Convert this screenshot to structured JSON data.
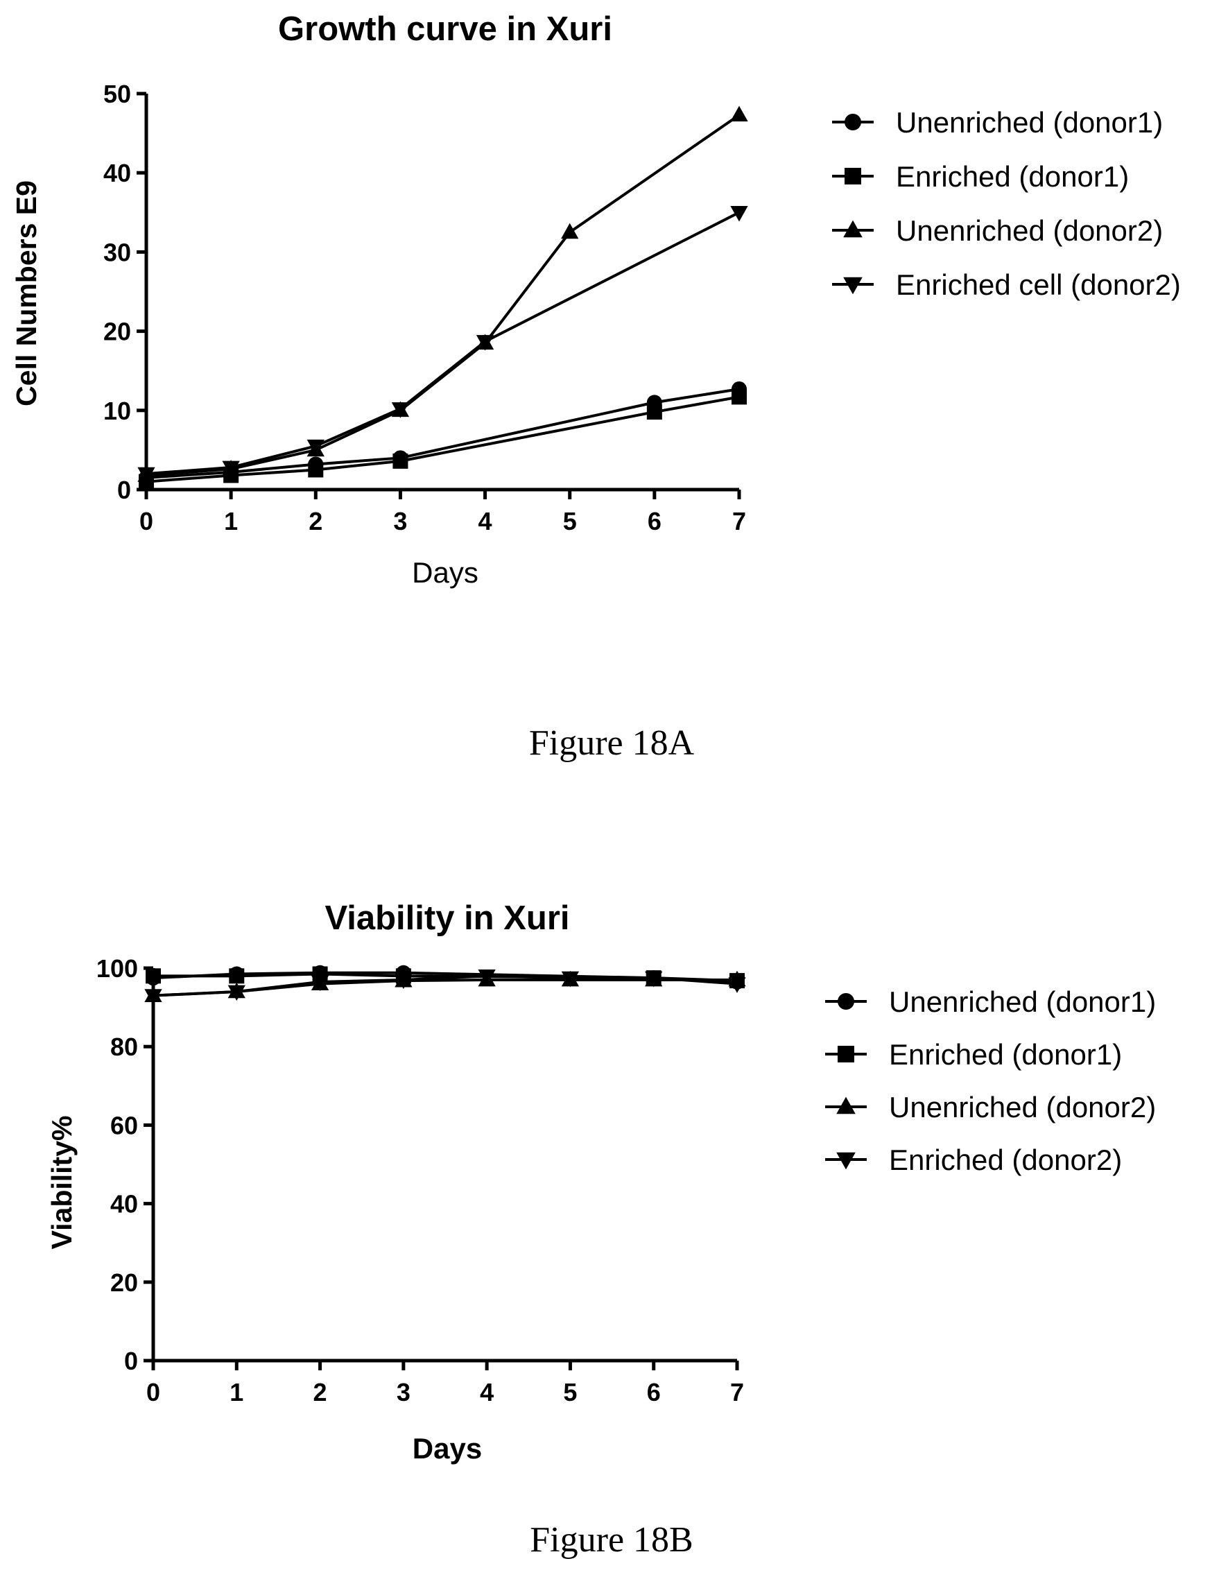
{
  "chart_data": [
    {
      "type": "line",
      "title": "Growth curve in Xuri",
      "xlabel": "Days",
      "ylabel": "Cell Numbers E9",
      "xlim": [
        0,
        7
      ],
      "ylim": [
        0,
        50
      ],
      "xticks": [
        "0",
        "1",
        "2",
        "3",
        "4",
        "5",
        "6",
        "7"
      ],
      "yticks": [
        "0",
        "10",
        "20",
        "30",
        "40",
        "50"
      ],
      "legend_position": "right",
      "series": [
        {
          "name": "Unenriched (donor1)",
          "marker": "circle",
          "x": [
            0,
            1,
            2,
            3,
            6,
            7
          ],
          "y": [
            1.5,
            2.2,
            3.2,
            4.0,
            11.0,
            12.7
          ]
        },
        {
          "name": "Enriched (donor1)",
          "marker": "square",
          "x": [
            0,
            1,
            2,
            3,
            6,
            7
          ],
          "y": [
            1.0,
            1.8,
            2.5,
            3.6,
            9.8,
            11.7
          ]
        },
        {
          "name": "Unenriched (donor2)",
          "marker": "triangle-up",
          "x": [
            0,
            1,
            2,
            3,
            4,
            5,
            7
          ],
          "y": [
            1.8,
            2.6,
            5.0,
            10.0,
            18.5,
            32.5,
            47.3
          ]
        },
        {
          "name": "Enriched cell (donor2)",
          "marker": "triangle-down",
          "x": [
            0,
            1,
            2,
            3,
            4,
            7
          ],
          "y": [
            2.0,
            2.8,
            5.5,
            10.2,
            18.7,
            35.0
          ]
        }
      ]
    },
    {
      "type": "line",
      "title": "Viability in Xuri",
      "xlabel": "Days",
      "ylabel": "Viability%",
      "xlim": [
        0,
        7
      ],
      "ylim": [
        0,
        100
      ],
      "xticks": [
        "0",
        "1",
        "2",
        "3",
        "4",
        "5",
        "6",
        "7"
      ],
      "yticks": [
        "0",
        "20",
        "40",
        "60",
        "80",
        "100"
      ],
      "legend_position": "right",
      "series": [
        {
          "name": "Unenriched (donor1)",
          "marker": "circle",
          "x": [
            0,
            1,
            2,
            3,
            6,
            7
          ],
          "y": [
            97.5,
            98.5,
            98.8,
            98.8,
            97.5,
            96.5
          ]
        },
        {
          "name": "Enriched (donor1)",
          "marker": "square",
          "x": [
            0,
            1,
            2,
            3,
            6,
            7
          ],
          "y": [
            98.0,
            98.0,
            98.5,
            98.0,
            97.5,
            96.8
          ]
        },
        {
          "name": "Unenriched (donor2)",
          "marker": "triangle-up",
          "x": [
            0,
            1,
            2,
            3,
            4,
            5,
            6,
            7
          ],
          "y": [
            93.0,
            94.0,
            96.0,
            96.8,
            97.0,
            97.0,
            97.0,
            97.0
          ]
        },
        {
          "name": "Enriched (donor2)",
          "marker": "triangle-down",
          "x": [
            0,
            1,
            2,
            3,
            4,
            5,
            6,
            7
          ],
          "y": [
            93.0,
            94.0,
            96.5,
            97.0,
            98.0,
            97.5,
            97.5,
            96.0
          ]
        }
      ]
    }
  ],
  "captions": [
    "Figure 18A",
    "Figure 18B"
  ]
}
